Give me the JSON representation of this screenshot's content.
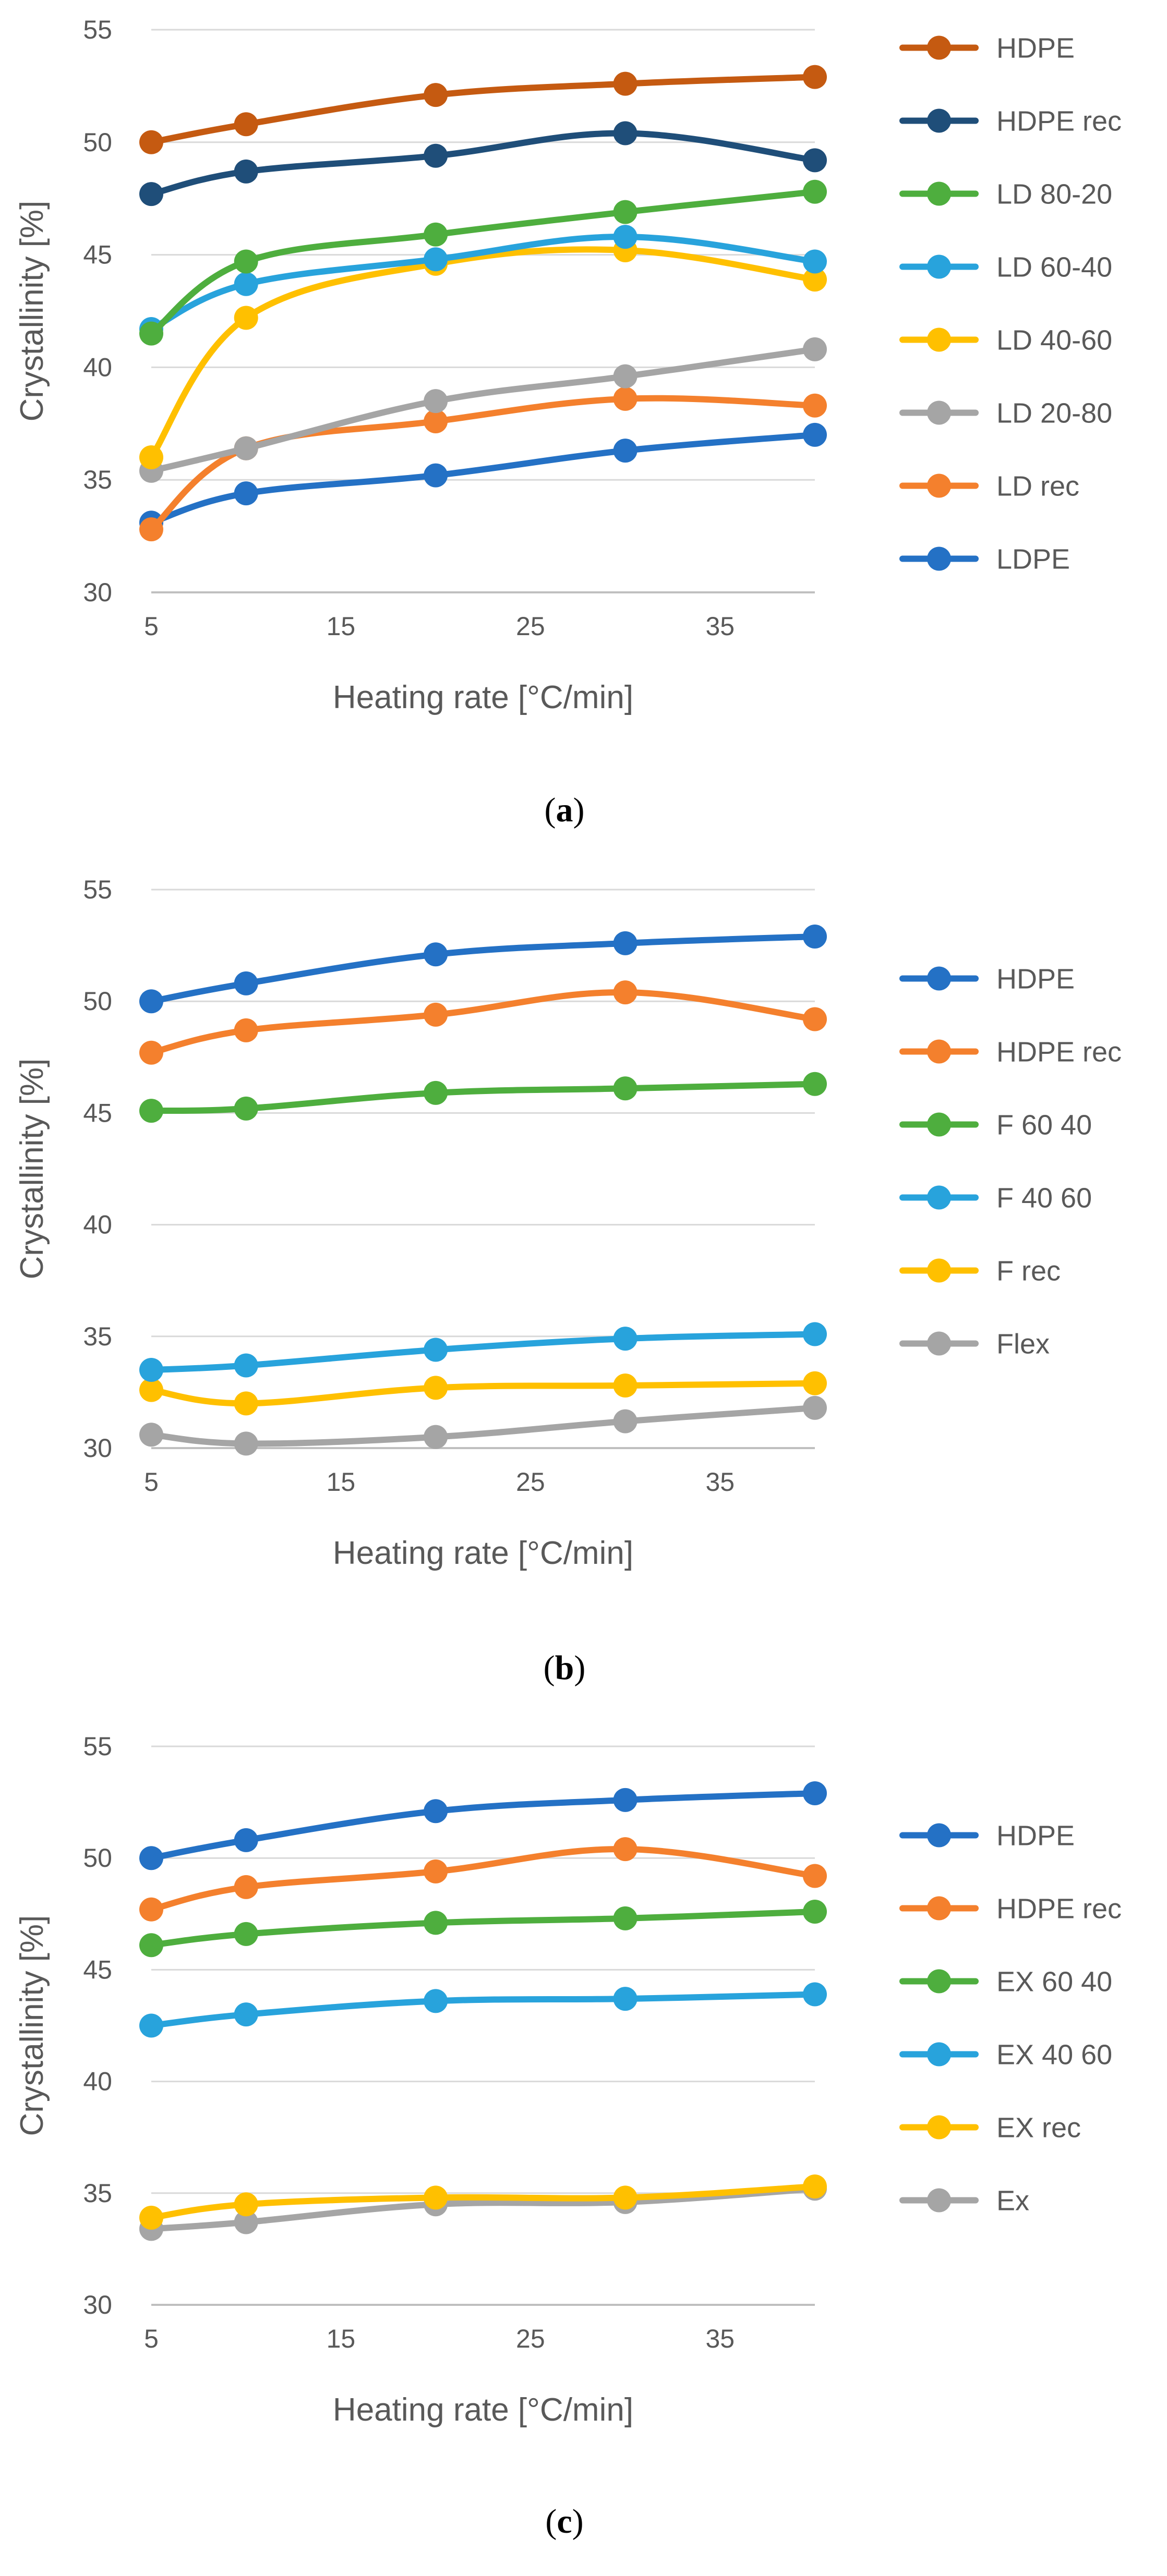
{
  "figure": {
    "panels": [
      {
        "caption": "(a)",
        "caption_bold": "a"
      },
      {
        "caption": "(b)",
        "caption_bold": "b"
      },
      {
        "caption": "(c)",
        "caption_bold": "c"
      }
    ]
  },
  "chart_data": [
    {
      "type": "line",
      "title": "",
      "xlabel": "Heating rate [°C/min]",
      "ylabel": "Crystallinity [%]",
      "xlim": [
        5,
        40
      ],
      "ylim": [
        30,
        55
      ],
      "xticks": [
        5,
        15,
        25,
        35
      ],
      "yticks": [
        30,
        35,
        40,
        45,
        50,
        55
      ],
      "grid": "horizontal",
      "legend_position": "right",
      "smooth": true,
      "x": [
        5,
        10,
        20,
        30,
        40
      ],
      "series": [
        {
          "name": "HDPE",
          "color": "#C55A11",
          "values": [
            50.0,
            50.8,
            52.1,
            52.6,
            52.9
          ]
        },
        {
          "name": "HDPE rec",
          "color": "#1F4E79",
          "values": [
            47.7,
            48.7,
            49.4,
            50.4,
            49.2
          ]
        },
        {
          "name": "LD 80-20",
          "color": "#4EAE3E",
          "values": [
            41.5,
            44.7,
            45.9,
            46.9,
            47.8
          ]
        },
        {
          "name": "LD 60-40",
          "color": "#28A3DC",
          "values": [
            41.7,
            43.7,
            44.8,
            45.8,
            44.7
          ]
        },
        {
          "name": "LD 40-60",
          "color": "#FFC000",
          "values": [
            36.0,
            42.2,
            44.6,
            45.2,
            43.9
          ]
        },
        {
          "name": "LD 20-80",
          "color": "#A5A5A5",
          "values": [
            35.4,
            36.4,
            38.5,
            39.6,
            40.8
          ]
        },
        {
          "name": "LD rec",
          "color": "#F4802D",
          "values": [
            32.8,
            36.4,
            37.6,
            38.6,
            38.3
          ]
        },
        {
          "name": "LDPE",
          "color": "#2471C5",
          "values": [
            33.1,
            34.4,
            35.2,
            36.3,
            37.0
          ]
        }
      ]
    },
    {
      "type": "line",
      "title": "",
      "xlabel": "Heating rate [°C/min]",
      "ylabel": "Crystallinity [%]",
      "xlim": [
        5,
        40
      ],
      "ylim": [
        30,
        55
      ],
      "xticks": [
        5,
        15,
        25,
        35
      ],
      "yticks": [
        30,
        35,
        40,
        45,
        50,
        55
      ],
      "grid": "horizontal",
      "legend_position": "right",
      "smooth": true,
      "x": [
        5,
        10,
        20,
        30,
        40
      ],
      "series": [
        {
          "name": "HDPE",
          "color": "#2471C5",
          "values": [
            50.0,
            50.8,
            52.1,
            52.6,
            52.9
          ]
        },
        {
          "name": "HDPE rec",
          "color": "#F4802D",
          "values": [
            47.7,
            48.7,
            49.4,
            50.4,
            49.2
          ]
        },
        {
          "name": "F 60 40",
          "color": "#4EAE3E",
          "values": [
            45.1,
            45.2,
            45.9,
            46.1,
            46.3
          ]
        },
        {
          "name": "F 40 60",
          "color": "#28A3DC",
          "values": [
            33.5,
            33.7,
            34.4,
            34.9,
            35.1
          ]
        },
        {
          "name": "F rec",
          "color": "#FFC000",
          "values": [
            32.6,
            32.0,
            32.7,
            32.8,
            32.9
          ]
        },
        {
          "name": "Flex",
          "color": "#A5A5A5",
          "values": [
            30.6,
            30.2,
            30.5,
            31.2,
            31.8
          ]
        }
      ]
    },
    {
      "type": "line",
      "title": "",
      "xlabel": "Heating rate [°C/min]",
      "ylabel": "Crystallinity [%]",
      "xlim": [
        5,
        40
      ],
      "ylim": [
        30,
        55
      ],
      "xticks": [
        5,
        15,
        25,
        35
      ],
      "yticks": [
        30,
        35,
        40,
        45,
        50,
        55
      ],
      "grid": "horizontal",
      "legend_position": "right",
      "smooth": true,
      "x": [
        5,
        10,
        20,
        30,
        40
      ],
      "series": [
        {
          "name": "HDPE",
          "color": "#2471C5",
          "values": [
            50.0,
            50.8,
            52.1,
            52.6,
            52.9
          ]
        },
        {
          "name": "HDPE rec",
          "color": "#F4802D",
          "values": [
            47.7,
            48.7,
            49.4,
            50.4,
            49.2
          ]
        },
        {
          "name": "EX 60 40",
          "color": "#4EAE3E",
          "values": [
            46.1,
            46.6,
            47.1,
            47.3,
            47.6
          ]
        },
        {
          "name": "EX 40 60",
          "color": "#28A3DC",
          "values": [
            42.5,
            43.0,
            43.6,
            43.7,
            43.9
          ]
        },
        {
          "name": "EX rec",
          "color": "#FFC000",
          "values": [
            33.9,
            34.5,
            34.8,
            34.8,
            35.3
          ]
        },
        {
          "name": "Ex",
          "color": "#A5A5A5",
          "values": [
            33.4,
            33.7,
            34.5,
            34.6,
            35.2
          ]
        }
      ]
    }
  ]
}
